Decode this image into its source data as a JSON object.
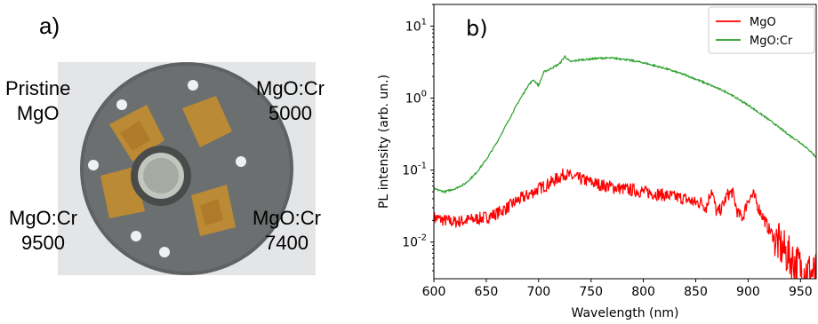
{
  "panel_a": {
    "label": "a)",
    "samples": [
      {
        "line1": "Pristine",
        "line2": "MgO"
      },
      {
        "line1": "MgO:Cr",
        "line2": "5000"
      },
      {
        "line1": "MgO:Cr",
        "line2": "9500"
      },
      {
        "line1": "MgO:Cr",
        "line2": "7400"
      }
    ]
  },
  "chart_data": {
    "type": "line",
    "panel_label": "b)",
    "xlabel": "Wavelength (nm)",
    "ylabel": "PL intensity (arb. un.)",
    "xlim": [
      600,
      965
    ],
    "ylim": [
      0.0031,
      20
    ],
    "y_scale": "log",
    "grid": false,
    "legend": "top-right",
    "x_ticks": [
      "600",
      "650",
      "700",
      "750",
      "800",
      "850",
      "900",
      "950"
    ],
    "y_ticks": [
      {
        "base": "10",
        "exp": "1",
        "value": 10
      },
      {
        "base": "10",
        "exp": "0",
        "value": 1
      },
      {
        "base": "10",
        "exp": "-1",
        "value": 0.1
      },
      {
        "base": "10",
        "exp": "-2",
        "value": 0.01
      }
    ],
    "series": [
      {
        "name": "MgO",
        "color": "#ff0000",
        "x": [
          600,
          610,
          620,
          630,
          640,
          650,
          660,
          670,
          680,
          690,
          700,
          710,
          720,
          725,
          730,
          740,
          750,
          760,
          780,
          800,
          820,
          840,
          850,
          855,
          860,
          865,
          870,
          875,
          880,
          885,
          890,
          895,
          900,
          905,
          910,
          920,
          930,
          940,
          950,
          960,
          965
        ],
        "y": [
          0.022,
          0.02,
          0.019,
          0.02,
          0.021,
          0.022,
          0.025,
          0.03,
          0.038,
          0.045,
          0.055,
          0.065,
          0.08,
          0.09,
          0.082,
          0.075,
          0.068,
          0.062,
          0.055,
          0.05,
          0.045,
          0.04,
          0.035,
          0.036,
          0.03,
          0.055,
          0.025,
          0.03,
          0.045,
          0.05,
          0.025,
          0.022,
          0.04,
          0.045,
          0.03,
          0.015,
          0.009,
          0.006,
          0.0045,
          0.0038,
          0.0035
        ]
      },
      {
        "name": "MgO:Cr",
        "color": "#2ca02c",
        "x": [
          600,
          610,
          620,
          630,
          640,
          650,
          660,
          670,
          680,
          690,
          695,
          700,
          705,
          710,
          720,
          725,
          730,
          740,
          750,
          760,
          770,
          780,
          790,
          800,
          820,
          840,
          860,
          880,
          900,
          920,
          940,
          950,
          960,
          965
        ],
        "y": [
          0.055,
          0.05,
          0.055,
          0.065,
          0.09,
          0.14,
          0.24,
          0.45,
          0.85,
          1.5,
          1.8,
          1.5,
          2.3,
          2.5,
          3.0,
          3.8,
          3.2,
          3.4,
          3.5,
          3.6,
          3.6,
          3.5,
          3.3,
          3.1,
          2.6,
          2.1,
          1.6,
          1.2,
          0.8,
          0.5,
          0.3,
          0.24,
          0.18,
          0.15
        ]
      }
    ]
  }
}
